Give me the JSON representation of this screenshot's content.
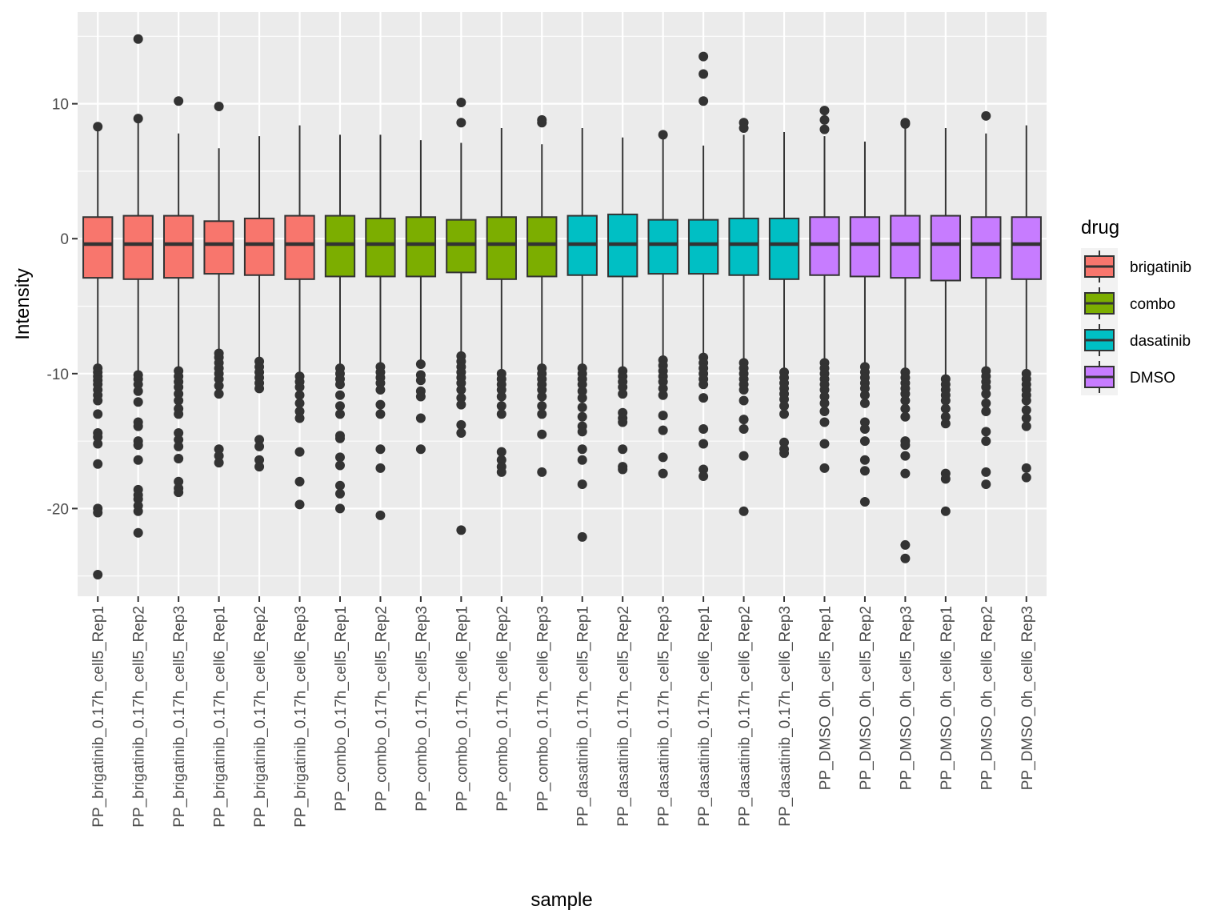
{
  "chart_data": {
    "type": "box",
    "title": "",
    "xlabel": "sample",
    "ylabel": "Intensity",
    "ylim": [
      -26.5,
      16.8
    ],
    "yticks": [
      -20,
      -10,
      0,
      10
    ],
    "ytick_labels": [
      "-20",
      "-10",
      "0",
      "10"
    ],
    "grid": true,
    "legend": {
      "title": "drug",
      "position": "right",
      "entries": [
        {
          "name": "brigatinib",
          "color": "#F8766D"
        },
        {
          "name": "combo",
          "color": "#7CAE00"
        },
        {
          "name": "dasatinib",
          "color": "#00BFC4"
        },
        {
          "name": "DMSO",
          "color": "#C77CFF"
        }
      ]
    },
    "categories": [
      "PP_brigatinib_0.17h_cell5_Rep1",
      "PP_brigatinib_0.17h_cell5_Rep2",
      "PP_brigatinib_0.17h_cell5_Rep3",
      "PP_brigatinib_0.17h_cell6_Rep1",
      "PP_brigatinib_0.17h_cell6_Rep2",
      "PP_brigatinib_0.17h_cell6_Rep3",
      "PP_combo_0.17h_cell5_Rep1",
      "PP_combo_0.17h_cell5_Rep2",
      "PP_combo_0.17h_cell5_Rep3",
      "PP_combo_0.17h_cell6_Rep1",
      "PP_combo_0.17h_cell6_Rep2",
      "PP_combo_0.17h_cell6_Rep3",
      "PP_dasatinib_0.17h_cell5_Rep1",
      "PP_dasatinib_0.17h_cell5_Rep2",
      "PP_dasatinib_0.17h_cell5_Rep3",
      "PP_dasatinib_0.17h_cell6_Rep1",
      "PP_dasatinib_0.17h_cell6_Rep2",
      "PP_dasatinib_0.17h_cell6_Rep3",
      "PP_DMSO_0h_cell5_Rep1",
      "PP_DMSO_0h_cell5_Rep2",
      "PP_DMSO_0h_cell5_Rep3",
      "PP_DMSO_0h_cell6_Rep1",
      "PP_DMSO_0h_cell6_Rep2",
      "PP_DMSO_0h_cell6_Rep3"
    ],
    "boxes": [
      {
        "drug": "brigatinib",
        "q1": -2.9,
        "median": -0.4,
        "q3": 1.6,
        "whisker_low": -9.5,
        "whisker_high": 8.0,
        "outliers": [
          8.3,
          -9.6,
          -9.9,
          -10.2,
          -10.5,
          -10.8,
          -11.2,
          -11.6,
          -12.0,
          -13.0,
          -14.4,
          -14.7,
          -15.2,
          -16.7,
          -20.0,
          -20.3,
          -24.9
        ]
      },
      {
        "drug": "brigatinib",
        "q1": -3.0,
        "median": -0.4,
        "q3": 1.7,
        "whisker_low": -9.9,
        "whisker_high": 8.6,
        "outliers": [
          14.8,
          8.9,
          -10.1,
          -10.4,
          -10.8,
          -11.3,
          -12.1,
          -13.6,
          -13.9,
          -15.0,
          -15.3,
          -16.4,
          -18.6,
          -19.0,
          -19.3,
          -19.8,
          -20.2,
          -21.8
        ]
      },
      {
        "drug": "brigatinib",
        "q1": -2.9,
        "median": -0.4,
        "q3": 1.7,
        "whisker_low": -9.6,
        "whisker_high": 7.8,
        "outliers": [
          10.2,
          -9.8,
          -10.2,
          -10.6,
          -11.0,
          -11.5,
          -12.0,
          -12.6,
          -13.0,
          -14.4,
          -14.9,
          -15.4,
          -16.3,
          -18.0,
          -18.5,
          -18.8
        ]
      },
      {
        "drug": "brigatinib",
        "q1": -2.6,
        "median": -0.4,
        "q3": 1.3,
        "whisker_low": -8.4,
        "whisker_high": 6.7,
        "outliers": [
          9.8,
          -8.5,
          -8.8,
          -9.2,
          -9.6,
          -10.0,
          -10.4,
          -10.9,
          -11.5,
          -15.6,
          -16.1,
          -16.6
        ]
      },
      {
        "drug": "brigatinib",
        "q1": -2.7,
        "median": -0.4,
        "q3": 1.5,
        "whisker_low": -9.0,
        "whisker_high": 7.6,
        "outliers": [
          -9.1,
          -9.5,
          -9.9,
          -10.3,
          -10.7,
          -11.1,
          -14.9,
          -15.4,
          -16.4,
          -16.9
        ]
      },
      {
        "drug": "brigatinib",
        "q1": -3.0,
        "median": -0.4,
        "q3": 1.7,
        "whisker_low": -10.0,
        "whisker_high": 8.4,
        "outliers": [
          -10.2,
          -10.6,
          -11.0,
          -11.6,
          -12.2,
          -12.8,
          -13.3,
          -15.8,
          -18.0,
          -19.7
        ]
      },
      {
        "drug": "combo",
        "q1": -2.8,
        "median": -0.4,
        "q3": 1.7,
        "whisker_low": -9.4,
        "whisker_high": 7.7,
        "outliers": [
          -9.6,
          -10.0,
          -10.4,
          -10.8,
          -11.6,
          -12.4,
          -13.0,
          -14.6,
          -14.8,
          -16.2,
          -16.8,
          -18.3,
          -18.9,
          -20.0
        ]
      },
      {
        "drug": "combo",
        "q1": -2.8,
        "median": -0.4,
        "q3": 1.5,
        "whisker_low": -9.3,
        "whisker_high": 7.7,
        "outliers": [
          -9.5,
          -9.9,
          -10.3,
          -10.7,
          -11.2,
          -12.3,
          -13.0,
          -15.6,
          -17.0,
          -20.5
        ]
      },
      {
        "drug": "combo",
        "q1": -2.8,
        "median": -0.4,
        "q3": 1.6,
        "whisker_low": -9.2,
        "whisker_high": 7.3,
        "outliers": [
          -9.3,
          -10.1,
          -10.5,
          -11.3,
          -11.7,
          -13.3,
          -15.6
        ]
      },
      {
        "drug": "combo",
        "q1": -2.5,
        "median": -0.4,
        "q3": 1.4,
        "whisker_low": -8.5,
        "whisker_high": 7.1,
        "outliers": [
          10.1,
          8.6,
          -8.7,
          -9.1,
          -9.5,
          -9.9,
          -10.3,
          -10.7,
          -11.2,
          -11.8,
          -12.3,
          -13.8,
          -14.4,
          -21.6
        ]
      },
      {
        "drug": "combo",
        "q1": -3.0,
        "median": -0.4,
        "q3": 1.6,
        "whisker_low": -9.8,
        "whisker_high": 8.2,
        "outliers": [
          -10.0,
          -10.4,
          -10.8,
          -11.2,
          -11.7,
          -12.4,
          -13.0,
          -15.8,
          -16.4,
          -16.9,
          -17.3
        ]
      },
      {
        "drug": "combo",
        "q1": -2.8,
        "median": -0.4,
        "q3": 1.6,
        "whisker_low": -9.4,
        "whisker_high": 7.0,
        "outliers": [
          8.8,
          8.6,
          -9.6,
          -10.0,
          -10.4,
          -10.8,
          -11.2,
          -11.7,
          -12.4,
          -13.0,
          -14.5,
          -17.3
        ]
      },
      {
        "drug": "dasatinib",
        "q1": -2.7,
        "median": -0.4,
        "q3": 1.7,
        "whisker_low": -9.4,
        "whisker_high": 8.2,
        "outliers": [
          -9.6,
          -10.0,
          -10.4,
          -10.8,
          -11.3,
          -11.8,
          -12.5,
          -13.2,
          -13.9,
          -14.3,
          -15.6,
          -16.4,
          -18.2,
          -22.1
        ]
      },
      {
        "drug": "dasatinib",
        "q1": -2.8,
        "median": -0.4,
        "q3": 1.8,
        "whisker_low": -9.6,
        "whisker_high": 7.5,
        "outliers": [
          -9.8,
          -10.2,
          -10.6,
          -11.0,
          -11.5,
          -12.9,
          -13.3,
          -13.6,
          -15.6,
          -16.9,
          -17.1
        ]
      },
      {
        "drug": "dasatinib",
        "q1": -2.6,
        "median": -0.4,
        "q3": 1.4,
        "whisker_low": -8.8,
        "whisker_high": 7.4,
        "outliers": [
          7.7,
          -9.0,
          -9.4,
          -9.8,
          -10.2,
          -10.6,
          -11.1,
          -11.6,
          -13.1,
          -14.2,
          -16.2,
          -17.4
        ]
      },
      {
        "drug": "dasatinib",
        "q1": -2.6,
        "median": -0.4,
        "q3": 1.4,
        "whisker_low": -8.6,
        "whisker_high": 6.9,
        "outliers": [
          13.5,
          12.2,
          10.2,
          -8.8,
          -9.2,
          -9.6,
          -10.0,
          -10.4,
          -10.8,
          -11.8,
          -14.1,
          -15.2,
          -17.1,
          -17.6
        ]
      },
      {
        "drug": "dasatinib",
        "q1": -2.7,
        "median": -0.4,
        "q3": 1.5,
        "whisker_low": -9.0,
        "whisker_high": 7.7,
        "outliers": [
          8.6,
          8.2,
          -9.2,
          -9.6,
          -10.0,
          -10.4,
          -10.8,
          -11.2,
          -12.0,
          -13.4,
          -14.1,
          -16.1,
          -20.2
        ]
      },
      {
        "drug": "dasatinib",
        "q1": -3.0,
        "median": -0.4,
        "q3": 1.5,
        "whisker_low": -9.7,
        "whisker_high": 7.9,
        "outliers": [
          -9.9,
          -10.3,
          -10.7,
          -11.1,
          -11.5,
          -11.9,
          -12.4,
          -13.0,
          -15.1,
          -15.6,
          -15.9
        ]
      },
      {
        "drug": "DMSO",
        "q1": -2.7,
        "median": -0.4,
        "q3": 1.6,
        "whisker_low": -9.0,
        "whisker_high": 7.6,
        "outliers": [
          9.5,
          8.8,
          8.1,
          -9.2,
          -9.6,
          -10.0,
          -10.4,
          -10.8,
          -11.2,
          -11.7,
          -12.2,
          -12.8,
          -13.6,
          -15.2,
          -17.0
        ]
      },
      {
        "drug": "DMSO",
        "q1": -2.8,
        "median": -0.4,
        "q3": 1.6,
        "whisker_low": -9.3,
        "whisker_high": 7.2,
        "outliers": [
          -9.5,
          -9.9,
          -10.3,
          -10.7,
          -11.1,
          -11.6,
          -12.2,
          -13.6,
          -14.1,
          -15.0,
          -16.4,
          -17.2,
          -19.5
        ]
      },
      {
        "drug": "DMSO",
        "q1": -2.9,
        "median": -0.4,
        "q3": 1.7,
        "whisker_low": -9.7,
        "whisker_high": 8.3,
        "outliers": [
          8.6,
          8.5,
          -9.9,
          -10.3,
          -10.7,
          -11.1,
          -11.5,
          -12.0,
          -12.6,
          -13.2,
          -15.0,
          -15.3,
          -16.1,
          -17.4,
          -22.7,
          -23.7
        ]
      },
      {
        "drug": "DMSO",
        "q1": -3.1,
        "median": -0.4,
        "q3": 1.7,
        "whisker_low": -10.2,
        "whisker_high": 8.2,
        "outliers": [
          -10.4,
          -10.8,
          -11.2,
          -11.6,
          -12.0,
          -12.6,
          -13.2,
          -13.7,
          -17.4,
          -17.8,
          -20.2
        ]
      },
      {
        "drug": "DMSO",
        "q1": -2.9,
        "median": -0.4,
        "q3": 1.6,
        "whisker_low": -9.6,
        "whisker_high": 7.8,
        "outliers": [
          9.1,
          -9.8,
          -10.2,
          -10.6,
          -11.0,
          -11.5,
          -12.2,
          -12.8,
          -14.3,
          -15.0,
          -17.3,
          -18.2
        ]
      },
      {
        "drug": "DMSO",
        "q1": -3.0,
        "median": -0.4,
        "q3": 1.6,
        "whisker_low": -9.8,
        "whisker_high": 8.4,
        "outliers": [
          -10.0,
          -10.4,
          -10.8,
          -11.2,
          -11.6,
          -12.0,
          -12.7,
          -13.3,
          -13.9,
          -17.0,
          -17.7
        ]
      }
    ]
  }
}
